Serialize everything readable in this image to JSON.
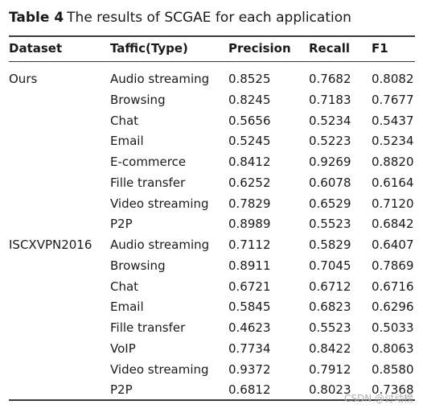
{
  "caption": {
    "label": "Table 4",
    "text": "The results of SCGAE for each application"
  },
  "columns": [
    "Dataset",
    "Taffic(Type)",
    "Precision",
    "Recall",
    "F1"
  ],
  "rows": [
    [
      "Ours",
      "Audio streaming",
      "0.8525",
      "0.7682",
      "0.8082"
    ],
    [
      "",
      "Browsing",
      "0.8245",
      "0.7183",
      "0.7677"
    ],
    [
      "",
      "Chat",
      "0.5656",
      "0.5234",
      "0.5437"
    ],
    [
      "",
      "Email",
      "0.5245",
      "0.5223",
      "0.5234"
    ],
    [
      "",
      "E-commerce",
      "0.8412",
      "0.9269",
      "0.8820"
    ],
    [
      "",
      "Fille transfer",
      "0.6252",
      "0.6078",
      "0.6164"
    ],
    [
      "",
      "Video streaming",
      "0.7829",
      "0.6529",
      "0.7120"
    ],
    [
      "",
      "P2P",
      "0.8989",
      "0.5523",
      "0.6842"
    ],
    [
      "ISCXVPN2016",
      "Audio streaming",
      "0.7112",
      "0.5829",
      "0.6407"
    ],
    [
      "",
      "Browsing",
      "0.8911",
      "0.7045",
      "0.7869"
    ],
    [
      "",
      "Chat",
      "0.6721",
      "0.6712",
      "0.6716"
    ],
    [
      "",
      "Email",
      "0.5845",
      "0.6823",
      "0.6296"
    ],
    [
      "",
      "Fille transfer",
      "0.4623",
      "0.5523",
      "0.5033"
    ],
    [
      "",
      "VoIP",
      "0.7734",
      "0.8422",
      "0.8063"
    ],
    [
      "",
      "Video streaming",
      "0.9372",
      "0.7912",
      "0.8580"
    ],
    [
      "",
      "P2P",
      "0.6812",
      "0.8023",
      "0.7368"
    ]
  ],
  "watermark": "CSDN @讨动榜"
}
